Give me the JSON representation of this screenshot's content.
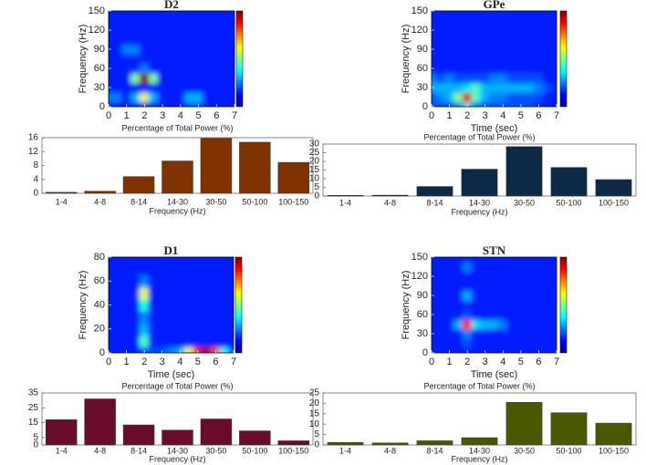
{
  "chart_data": [
    {
      "type": "heatmap",
      "title": "D2",
      "ylabel": "Frequency (Hz)",
      "colormap": "jet",
      "xlim": [
        0,
        7
      ],
      "ylim": [
        0,
        150
      ],
      "xticks": [
        0,
        1,
        2,
        3,
        4,
        5,
        6,
        7
      ],
      "yticks": [
        0,
        30,
        60,
        90,
        120,
        150
      ],
      "x": [
        0,
        0.5,
        1,
        1.5,
        2,
        2.5,
        3,
        3.5,
        4,
        4.5,
        5,
        5.5,
        6,
        6.5,
        7
      ],
      "y": [
        0,
        15,
        30,
        45,
        60,
        75,
        90,
        105,
        120,
        135,
        150
      ],
      "z": [
        [
          0.15,
          0.15,
          0.15,
          0.15,
          0.15,
          0.15,
          0.15,
          0.15,
          0.15,
          0.2,
          0.2,
          0.15,
          0.15,
          0.15,
          0.15
        ],
        [
          0.25,
          0.25,
          0.15,
          0.3,
          0.6,
          0.3,
          0.15,
          0.15,
          0.15,
          0.3,
          0.3,
          0.15,
          0.15,
          0.15,
          0.15
        ],
        [
          0.15,
          0.15,
          0.15,
          0.15,
          0.15,
          0.15,
          0.15,
          0.15,
          0.15,
          0.15,
          0.15,
          0.15,
          0.15,
          0.15,
          0.15
        ],
        [
          0.15,
          0.15,
          0.15,
          0.5,
          1,
          0.5,
          0.15,
          0.15,
          0.15,
          0.15,
          0.15,
          0.15,
          0.15,
          0.15,
          0.15
        ],
        [
          0.15,
          0.15,
          0.15,
          0.15,
          0.25,
          0.15,
          0.15,
          0.15,
          0.15,
          0.15,
          0.15,
          0.15,
          0.15,
          0.15,
          0.15
        ],
        [
          0.15,
          0.15,
          0.15,
          0.15,
          0.15,
          0.15,
          0.15,
          0.15,
          0.15,
          0.15,
          0.15,
          0.15,
          0.15,
          0.15,
          0.15
        ],
        [
          0.15,
          0.15,
          0.25,
          0.25,
          0.15,
          0.15,
          0.15,
          0.15,
          0.15,
          0.15,
          0.15,
          0.15,
          0.15,
          0.15,
          0.15
        ],
        [
          0.15,
          0.15,
          0.15,
          0.15,
          0.15,
          0.15,
          0.15,
          0.15,
          0.15,
          0.15,
          0.15,
          0.15,
          0.15,
          0.15,
          0.15
        ],
        [
          0.15,
          0.15,
          0.15,
          0.15,
          0.15,
          0.15,
          0.15,
          0.15,
          0.15,
          0.15,
          0.15,
          0.15,
          0.15,
          0.15,
          0.15
        ],
        [
          0.15,
          0.15,
          0.15,
          0.15,
          0.15,
          0.15,
          0.15,
          0.15,
          0.15,
          0.15,
          0.15,
          0.15,
          0.15,
          0.15,
          0.15
        ],
        [
          0.15,
          0.15,
          0.15,
          0.15,
          0.15,
          0.15,
          0.15,
          0.15,
          0.15,
          0.15,
          0.15,
          0.15,
          0.15,
          0.15,
          0.15
        ]
      ]
    },
    {
      "type": "bar",
      "title": "Percentage of Total Power (%)",
      "xlabel": "Frequency (Hz)",
      "color": "#7f3300",
      "categories": [
        "1-4",
        "4-8",
        "8-14",
        "14-30",
        "30-50",
        "50-100",
        "100-150"
      ],
      "values": [
        0.3,
        0.6,
        4.8,
        9.3,
        15.8,
        14.7,
        8.9
      ],
      "ylim": [
        0,
        16
      ],
      "yticks": [
        0,
        4,
        8,
        12,
        16
      ]
    },
    {
      "type": "heatmap",
      "title": "GPe",
      "ylabel": "Frequency (Hz)",
      "xlabel": "Time (sec)",
      "colormap": "jet",
      "xlim": [
        0,
        7
      ],
      "ylim": [
        0,
        150
      ],
      "xticks": [
        0,
        1,
        2,
        3,
        4,
        5,
        6,
        7
      ],
      "yticks": [
        0,
        30,
        60,
        90,
        120,
        150
      ],
      "x": [
        0,
        0.5,
        1,
        1.5,
        2,
        2.5,
        3,
        3.5,
        4,
        4.5,
        5,
        5.5,
        6,
        6.5,
        7
      ],
      "y": [
        0,
        15,
        30,
        45,
        60,
        75,
        90,
        105,
        120,
        135,
        150
      ],
      "z": [
        [
          0.2,
          0.2,
          0.2,
          0.25,
          0.35,
          0.25,
          0.2,
          0.2,
          0.2,
          0.2,
          0.2,
          0.2,
          0.15,
          0.15,
          0.15
        ],
        [
          0.2,
          0.25,
          0.3,
          0.5,
          0.9,
          0.45,
          0.3,
          0.25,
          0.25,
          0.2,
          0.2,
          0.2,
          0.2,
          0.15,
          0.15
        ],
        [
          0.3,
          0.3,
          0.3,
          0.3,
          0.35,
          0.45,
          0.3,
          0.3,
          0.3,
          0.3,
          0.3,
          0.3,
          0.25,
          0.2,
          0.15
        ],
        [
          0.25,
          0.2,
          0.25,
          0.2,
          0.2,
          0.2,
          0.2,
          0.25,
          0.25,
          0.2,
          0.2,
          0.2,
          0.2,
          0.15,
          0.15
        ],
        [
          0.15,
          0.15,
          0.15,
          0.15,
          0.15,
          0.15,
          0.15,
          0.15,
          0.15,
          0.15,
          0.15,
          0.15,
          0.15,
          0.15,
          0.15
        ],
        [
          0.15,
          0.15,
          0.15,
          0.15,
          0.15,
          0.15,
          0.15,
          0.15,
          0.15,
          0.15,
          0.15,
          0.15,
          0.15,
          0.15,
          0.15
        ],
        [
          0.15,
          0.15,
          0.15,
          0.15,
          0.15,
          0.15,
          0.15,
          0.15,
          0.15,
          0.15,
          0.15,
          0.15,
          0.15,
          0.15,
          0.15
        ],
        [
          0.15,
          0.15,
          0.15,
          0.15,
          0.15,
          0.15,
          0.15,
          0.15,
          0.15,
          0.15,
          0.15,
          0.15,
          0.15,
          0.15,
          0.15
        ],
        [
          0.15,
          0.15,
          0.15,
          0.15,
          0.15,
          0.15,
          0.15,
          0.15,
          0.15,
          0.15,
          0.15,
          0.15,
          0.15,
          0.15,
          0.15
        ],
        [
          0.15,
          0.15,
          0.15,
          0.15,
          0.15,
          0.15,
          0.15,
          0.15,
          0.15,
          0.15,
          0.15,
          0.15,
          0.15,
          0.15,
          0.15
        ],
        [
          0.15,
          0.15,
          0.15,
          0.15,
          0.15,
          0.15,
          0.15,
          0.15,
          0.15,
          0.15,
          0.15,
          0.15,
          0.15,
          0.15,
          0.15
        ]
      ]
    },
    {
      "type": "bar",
      "title": "Percentage of Total Power (%)",
      "xlabel": "Frequency (Hz)",
      "color": "#0c2a48",
      "categories": [
        "1-4",
        "4-8",
        "8-14",
        "14-30",
        "30-50",
        "50-100",
        "100-150"
      ],
      "values": [
        0.4,
        0.5,
        5.5,
        15.5,
        28.5,
        16.5,
        9.5
      ],
      "ylim": [
        0,
        30
      ],
      "yticks": [
        0,
        5,
        10,
        15,
        20,
        25,
        30
      ]
    },
    {
      "type": "heatmap",
      "title": "D1",
      "ylabel": "Frequency (Hz)",
      "xlabel": "Time (sec)",
      "colormap": "jet",
      "xlim": [
        0,
        7
      ],
      "ylim": [
        0,
        80
      ],
      "xticks": [
        0,
        1,
        2,
        3,
        4,
        5,
        6,
        7
      ],
      "yticks": [
        0,
        20,
        40,
        60,
        80
      ],
      "x": [
        0,
        0.5,
        1,
        1.5,
        2,
        2.5,
        3,
        3.5,
        4,
        4.5,
        5,
        5.5,
        6,
        6.5,
        7
      ],
      "y": [
        0,
        10,
        20,
        30,
        40,
        50,
        60,
        70,
        80
      ],
      "z": [
        [
          0.15,
          0.15,
          0.15,
          0.15,
          0.2,
          0.2,
          0.2,
          0.25,
          0.3,
          0.6,
          0.85,
          0.95,
          0.8,
          0.4,
          0.2
        ],
        [
          0.15,
          0.15,
          0.15,
          0.15,
          0.45,
          0.15,
          0.15,
          0.15,
          0.15,
          0.15,
          0.15,
          0.15,
          0.15,
          0.15,
          0.15
        ],
        [
          0.15,
          0.15,
          0.15,
          0.15,
          0.3,
          0.15,
          0.15,
          0.15,
          0.15,
          0.15,
          0.15,
          0.15,
          0.15,
          0.15,
          0.15
        ],
        [
          0.15,
          0.15,
          0.15,
          0.15,
          0.25,
          0.15,
          0.15,
          0.15,
          0.15,
          0.15,
          0.15,
          0.15,
          0.15,
          0.15,
          0.15
        ],
        [
          0.15,
          0.15,
          0.15,
          0.15,
          0.4,
          0.15,
          0.15,
          0.15,
          0.15,
          0.15,
          0.15,
          0.15,
          0.15,
          0.15,
          0.15
        ],
        [
          0.15,
          0.15,
          0.15,
          0.15,
          0.6,
          0.15,
          0.15,
          0.15,
          0.15,
          0.15,
          0.15,
          0.15,
          0.15,
          0.15,
          0.15
        ],
        [
          0.15,
          0.15,
          0.15,
          0.15,
          0.25,
          0.15,
          0.15,
          0.15,
          0.15,
          0.15,
          0.15,
          0.15,
          0.15,
          0.15,
          0.15
        ],
        [
          0.15,
          0.15,
          0.15,
          0.15,
          0.15,
          0.15,
          0.15,
          0.15,
          0.15,
          0.15,
          0.15,
          0.15,
          0.15,
          0.15,
          0.15
        ],
        [
          0.15,
          0.15,
          0.15,
          0.15,
          0.15,
          0.15,
          0.15,
          0.15,
          0.15,
          0.15,
          0.15,
          0.15,
          0.15,
          0.15,
          0.15
        ]
      ]
    },
    {
      "type": "bar",
      "title": "Percentage of Total Power (%)",
      "xlabel": "Frequency (Hz)",
      "color": "#6a0d2c",
      "categories": [
        "1-4",
        "4-8",
        "8-14",
        "14-30",
        "30-50",
        "50-100",
        "100-150"
      ],
      "values": [
        17,
        31,
        13.5,
        10,
        17.5,
        9.5,
        2.8
      ],
      "ylim": [
        0,
        35
      ],
      "yticks": [
        0,
        5,
        15,
        25,
        35
      ]
    },
    {
      "type": "heatmap",
      "title": "STN",
      "ylabel": "Frequency (Hz)",
      "xlabel": "Time (sec)",
      "colormap": "jet",
      "xlim": [
        0,
        7
      ],
      "ylim": [
        0,
        150
      ],
      "xticks": [
        0,
        1,
        2,
        3,
        4,
        5,
        6,
        7
      ],
      "yticks": [
        0,
        30,
        60,
        90,
        120,
        150
      ],
      "x": [
        0,
        0.5,
        1,
        1.5,
        2,
        2.5,
        3,
        3.5,
        4,
        4.5,
        5,
        5.5,
        6,
        6.5,
        7
      ],
      "y": [
        0,
        15,
        30,
        45,
        60,
        75,
        90,
        105,
        120,
        135,
        150
      ],
      "z": [
        [
          0.15,
          0.15,
          0.15,
          0.15,
          0.15,
          0.15,
          0.15,
          0.15,
          0.15,
          0.15,
          0.15,
          0.15,
          0.15,
          0.15,
          0.15
        ],
        [
          0.15,
          0.15,
          0.15,
          0.15,
          0.2,
          0.15,
          0.15,
          0.15,
          0.15,
          0.15,
          0.15,
          0.15,
          0.15,
          0.15,
          0.15
        ],
        [
          0.15,
          0.15,
          0.15,
          0.15,
          0.25,
          0.15,
          0.15,
          0.15,
          0.15,
          0.15,
          0.15,
          0.15,
          0.15,
          0.15,
          0.15
        ],
        [
          0.15,
          0.15,
          0.15,
          0.3,
          0.85,
          0.35,
          0.3,
          0.3,
          0.25,
          0.15,
          0.15,
          0.15,
          0.15,
          0.15,
          0.15
        ],
        [
          0.15,
          0.15,
          0.15,
          0.15,
          0.2,
          0.15,
          0.15,
          0.15,
          0.15,
          0.15,
          0.15,
          0.15,
          0.15,
          0.15,
          0.15
        ],
        [
          0.15,
          0.15,
          0.15,
          0.15,
          0.15,
          0.15,
          0.15,
          0.15,
          0.15,
          0.15,
          0.15,
          0.15,
          0.15,
          0.15,
          0.15
        ],
        [
          0.15,
          0.15,
          0.15,
          0.15,
          0.3,
          0.15,
          0.15,
          0.15,
          0.15,
          0.15,
          0.15,
          0.15,
          0.15,
          0.15,
          0.15
        ],
        [
          0.15,
          0.15,
          0.15,
          0.15,
          0.15,
          0.15,
          0.15,
          0.15,
          0.15,
          0.15,
          0.15,
          0.15,
          0.15,
          0.15,
          0.15
        ],
        [
          0.15,
          0.15,
          0.15,
          0.15,
          0.15,
          0.15,
          0.15,
          0.15,
          0.15,
          0.15,
          0.15,
          0.15,
          0.15,
          0.15,
          0.15
        ],
        [
          0.15,
          0.15,
          0.15,
          0.15,
          0.25,
          0.15,
          0.15,
          0.15,
          0.15,
          0.15,
          0.15,
          0.15,
          0.15,
          0.15,
          0.15
        ],
        [
          0.15,
          0.15,
          0.15,
          0.15,
          0.15,
          0.15,
          0.15,
          0.15,
          0.15,
          0.15,
          0.15,
          0.15,
          0.15,
          0.15,
          0.15
        ]
      ]
    },
    {
      "type": "bar",
      "title": "Percentage of Total Power (%)",
      "xlabel": "Frequency (Hz)",
      "color": "#4b5800",
      "categories": [
        "1-4",
        "4-8",
        "8-14",
        "14-30",
        "30-50",
        "50-100",
        "100-150"
      ],
      "values": [
        1.2,
        1,
        2,
        3.5,
        20.5,
        15.5,
        10.5
      ],
      "ylim": [
        0,
        25
      ],
      "yticks": [
        0,
        5,
        10,
        15,
        20,
        25
      ]
    }
  ]
}
